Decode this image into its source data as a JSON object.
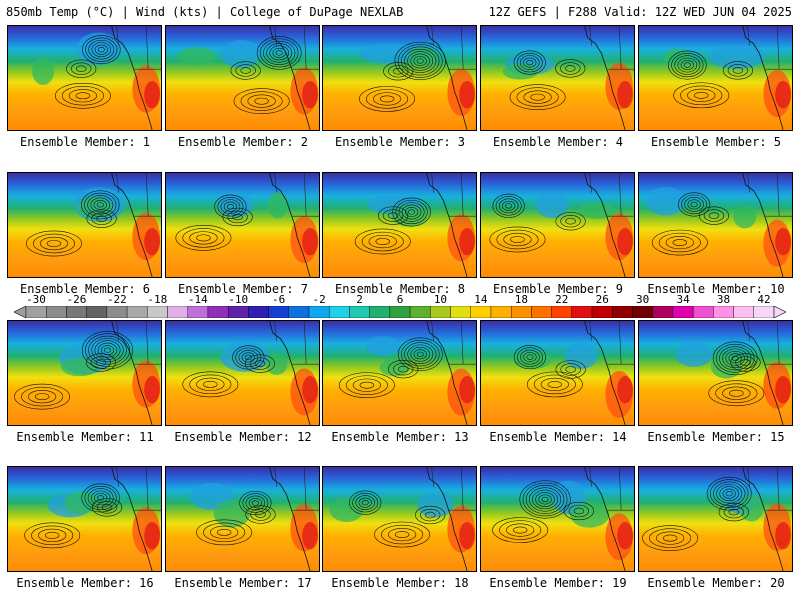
{
  "header": {
    "left": "850mb Temp (°C) | Wind (kts) | College of DuPage NEXLAB",
    "right": "12Z GEFS | F288 Valid: 12Z WED JUN 04 2025"
  },
  "colorbar": {
    "ticks": [
      "-30",
      "-26",
      "-22",
      "-18",
      "-14",
      "-10",
      "-6",
      "-2",
      "2",
      "6",
      "10",
      "14",
      "18",
      "22",
      "26",
      "30",
      "34",
      "38",
      "42"
    ],
    "colors": [
      "#a0a0a0",
      "#8c8c8c",
      "#787878",
      "#646464",
      "#8c8c8c",
      "#a8a8a8",
      "#c8c8c8",
      "#e0b0e8",
      "#c070d8",
      "#9030b8",
      "#6020a8",
      "#3020b0",
      "#1840d0",
      "#1070e0",
      "#10a8f0",
      "#20d0e8",
      "#20c8b0",
      "#20b070",
      "#30a040",
      "#60b030",
      "#a8c820",
      "#e0e010",
      "#ffd000",
      "#ffb000",
      "#ff9000",
      "#ff7000",
      "#ff4000",
      "#e01010",
      "#c00000",
      "#900000",
      "#700000",
      "#b00060",
      "#e000b0",
      "#f050d0",
      "#ff90e8",
      "#ffc0f0",
      "#f8d8f8"
    ]
  },
  "members": [
    {
      "label": "Ensemble Member: 1"
    },
    {
      "label": "Ensemble Member: 2"
    },
    {
      "label": "Ensemble Member: 3"
    },
    {
      "label": "Ensemble Member: 4"
    },
    {
      "label": "Ensemble Member: 5"
    },
    {
      "label": "Ensemble Member: 6"
    },
    {
      "label": "Ensemble Member: 7"
    },
    {
      "label": "Ensemble Member: 8"
    },
    {
      "label": "Ensemble Member: 9"
    },
    {
      "label": "Ensemble Member: 10"
    },
    {
      "label": "Ensemble Member: 11"
    },
    {
      "label": "Ensemble Member: 12"
    },
    {
      "label": "Ensemble Member: 13"
    },
    {
      "label": "Ensemble Member: 14"
    },
    {
      "label": "Ensemble Member: 15"
    },
    {
      "label": "Ensemble Member: 16"
    },
    {
      "label": "Ensemble Member: 17"
    },
    {
      "label": "Ensemble Member: 18"
    },
    {
      "label": "Ensemble Member: 19"
    },
    {
      "label": "Ensemble Member: 20"
    }
  ]
}
